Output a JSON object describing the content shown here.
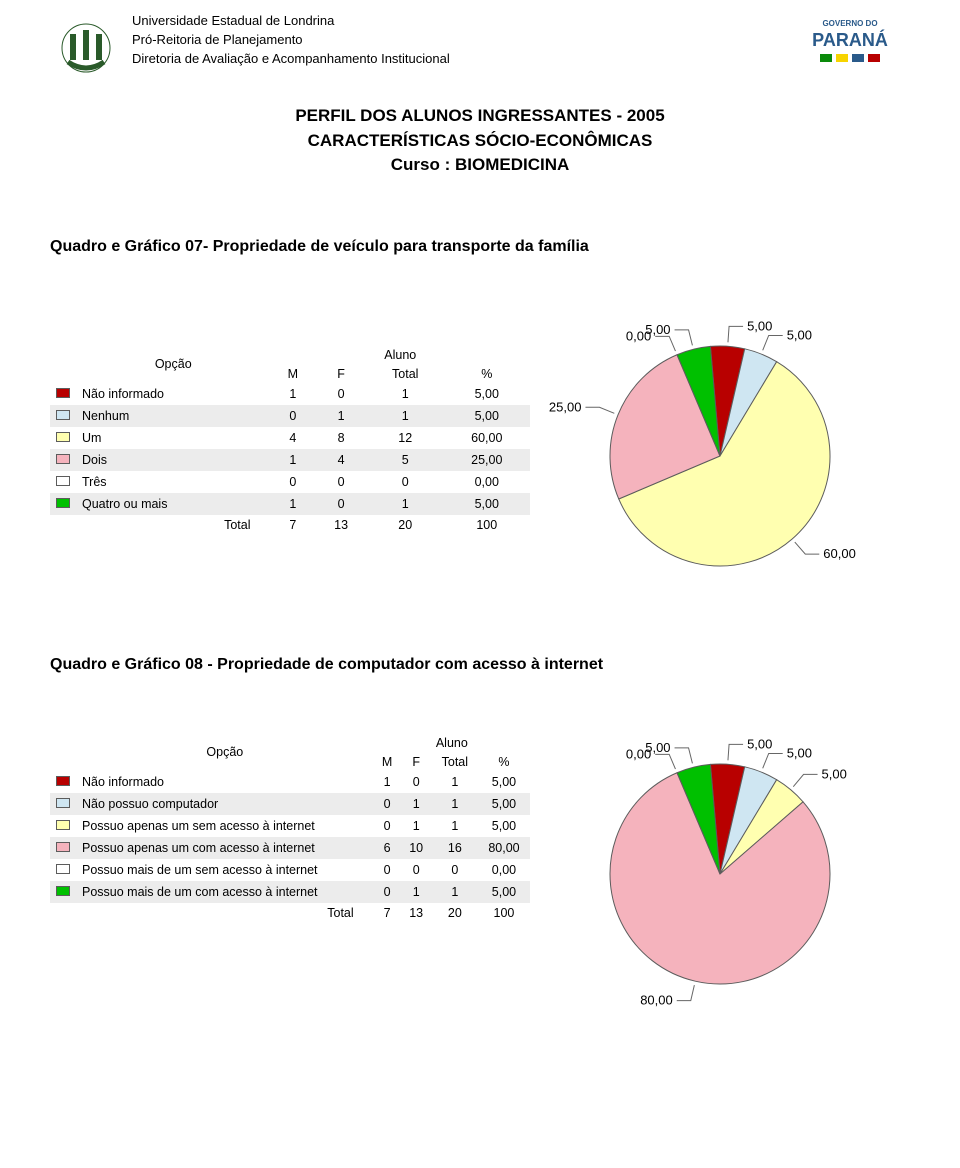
{
  "header": {
    "line1": "Universidade Estadual de Londrina",
    "line2": "Pró-Reitoria de Planejamento",
    "line3": "Diretoria de Avaliação e Acompanhamento Institucional"
  },
  "title": {
    "line1": "PERFIL DOS ALUNOS INGRESSANTES -  2005",
    "line2": "CARACTERÍSTICAS SÓCIO-ECONÔMICAS",
    "line3": "Curso : BIOMEDICINA"
  },
  "section1": {
    "title": "Quadro e Gráfico 07- Propriedade de veículo para transporte da família",
    "table": {
      "opcao": "Opção",
      "aluno": "Aluno",
      "cols": {
        "m": "M",
        "f": "F",
        "total": "Total",
        "pct": "%"
      },
      "rows": [
        {
          "swatch": "#b80000",
          "label": "Não informado",
          "m": "1",
          "f": "0",
          "total": "1",
          "pct": "5,00"
        },
        {
          "swatch": "#cfe6f2",
          "label": "Nenhum",
          "m": "0",
          "f": "1",
          "total": "1",
          "pct": "5,00"
        },
        {
          "swatch": "#ffffb0",
          "label": "Um",
          "m": "4",
          "f": "8",
          "total": "12",
          "pct": "60,00"
        },
        {
          "swatch": "#f5b3bd",
          "label": "Dois",
          "m": "1",
          "f": "4",
          "total": "5",
          "pct": "25,00"
        },
        {
          "swatch": "#ffffff",
          "label": "Três",
          "m": "0",
          "f": "0",
          "total": "0",
          "pct": "0,00"
        },
        {
          "swatch": "#00c000",
          "label": "Quatro ou mais",
          "m": "1",
          "f": "0",
          "total": "1",
          "pct": "5,00"
        }
      ],
      "total": {
        "label": "Total",
        "m": "7",
        "f": "13",
        "total": "20",
        "pct": "100"
      }
    },
    "pie": {
      "slices": [
        {
          "color": "#b80000",
          "value": 5,
          "label": "5,00"
        },
        {
          "color": "#cfe6f2",
          "value": 5,
          "label": "5,00"
        },
        {
          "color": "#ffffb0",
          "value": 60,
          "label": "60,00"
        },
        {
          "color": "#f5b3bd",
          "value": 25,
          "label": "25,00"
        },
        {
          "color": "#ffffff",
          "value": 0,
          "label": "0,00"
        },
        {
          "color": "#00c000",
          "value": 5,
          "label": "5,00"
        }
      ],
      "stroke": "#5c5c5c",
      "startAngle": -95
    }
  },
  "section2": {
    "title": "Quadro e Gráfico 08 - Propriedade de computador com acesso à internet",
    "table": {
      "opcao": "Opção",
      "aluno": "Aluno",
      "cols": {
        "m": "M",
        "f": "F",
        "total": "Total",
        "pct": "%"
      },
      "rows": [
        {
          "swatch": "#b80000",
          "label": "Não informado",
          "m": "1",
          "f": "0",
          "total": "1",
          "pct": "5,00"
        },
        {
          "swatch": "#cfe6f2",
          "label": "Não possuo computador",
          "m": "0",
          "f": "1",
          "total": "1",
          "pct": "5,00"
        },
        {
          "swatch": "#ffffb0",
          "label": "Possuo apenas um sem acesso à internet",
          "m": "0",
          "f": "1",
          "total": "1",
          "pct": "5,00"
        },
        {
          "swatch": "#f5b3bd",
          "label": "Possuo apenas um com acesso à internet",
          "m": "6",
          "f": "10",
          "total": "16",
          "pct": "80,00"
        },
        {
          "swatch": "#ffffff",
          "label": "Possuo mais de um sem acesso à internet",
          "m": "0",
          "f": "0",
          "total": "0",
          "pct": "0,00"
        },
        {
          "swatch": "#00c000",
          "label": "Possuo mais de um com acesso à internet",
          "m": "0",
          "f": "1",
          "total": "1",
          "pct": "5,00"
        }
      ],
      "total": {
        "label": "Total",
        "m": "7",
        "f": "13",
        "total": "20",
        "pct": "100"
      }
    },
    "pie": {
      "slices": [
        {
          "color": "#b80000",
          "value": 5,
          "label": "5,00"
        },
        {
          "color": "#cfe6f2",
          "value": 5,
          "label": "5,00"
        },
        {
          "color": "#ffffb0",
          "value": 5,
          "label": "5,00"
        },
        {
          "color": "#f5b3bd",
          "value": 80,
          "label": "80,00"
        },
        {
          "color": "#ffffff",
          "value": 0,
          "label": "0,00"
        },
        {
          "color": "#00c000",
          "value": 5,
          "label": "5,00"
        }
      ],
      "stroke": "#5c5c5c",
      "startAngle": -95
    }
  }
}
